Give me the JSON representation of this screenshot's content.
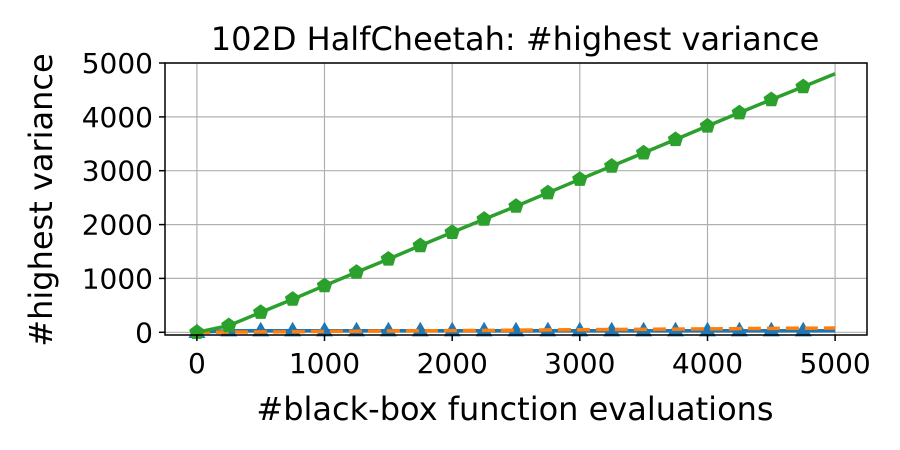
{
  "chart_data": {
    "type": "line",
    "title": "102D HalfCheetah: #highest variance",
    "xlabel": "#black-box function evaluations",
    "ylabel": "#highest variance",
    "xlim": [
      -250,
      5250
    ],
    "ylim": [
      -50,
      5000
    ],
    "xticks": [
      0,
      1000,
      2000,
      3000,
      4000,
      5000
    ],
    "yticks": [
      0,
      1000,
      2000,
      3000,
      4000,
      5000
    ],
    "grid": true,
    "x": [
      0,
      250,
      500,
      750,
      1000,
      1250,
      1500,
      1750,
      2000,
      2250,
      2500,
      2750,
      3000,
      3250,
      3500,
      3750,
      4000,
      4250,
      4500,
      4750,
      5000
    ],
    "series": [
      {
        "color": "#2ca02c",
        "marker": "pentagon",
        "line": "solid",
        "values": [
          0,
          125,
          370,
          615,
          865,
          1115,
          1360,
          1610,
          1855,
          2100,
          2340,
          2590,
          2840,
          3085,
          3330,
          3580,
          3830,
          4075,
          4320,
          4560,
          4800
        ],
        "marker_every": 1,
        "marker_skip_last": true
      },
      {
        "color": "#ff7f0e",
        "marker": "none",
        "line": "dashed",
        "values": [
          0,
          4,
          8,
          12,
          16,
          20,
          24,
          28,
          32,
          36,
          40,
          44,
          48,
          52,
          56,
          60,
          64,
          68,
          72,
          76,
          80
        ]
      },
      {
        "color": "#1f77b4",
        "marker": "triangle",
        "line": "solid",
        "values": [
          0,
          30,
          30,
          30,
          30,
          30,
          30,
          30,
          30,
          30,
          30,
          30,
          30,
          30,
          30,
          30,
          30,
          30,
          30,
          30,
          30
        ],
        "marker_skip_last": true
      }
    ]
  }
}
